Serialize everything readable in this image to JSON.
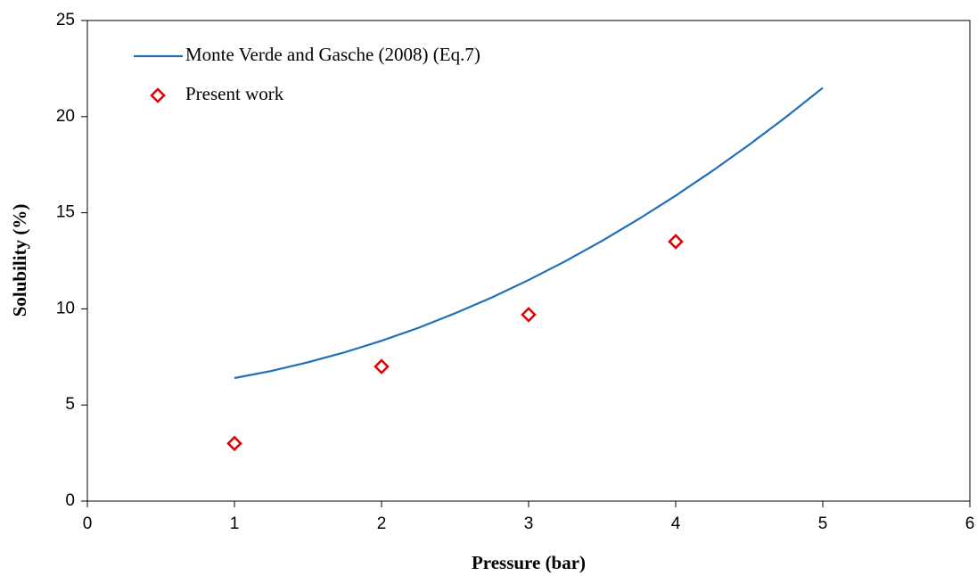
{
  "chart_data": {
    "type": "line",
    "x_label": "Pressure (bar)",
    "y_label": "Solubility (%)",
    "xlim": [
      0,
      6
    ],
    "xticks": [
      0,
      1,
      2,
      3,
      4,
      5,
      6
    ],
    "ylim": [
      0,
      25
    ],
    "yticks": [
      0,
      5,
      10,
      15,
      20,
      25
    ],
    "legend": "upper left",
    "series": [
      {
        "name": "Monte Verde and Gasche (2008) (Eq.7)",
        "type": "line",
        "color": "#1f6fb8",
        "x": [
          1,
          1.25,
          1.5,
          1.75,
          2,
          2.25,
          2.5,
          2.75,
          3,
          3.25,
          3.5,
          3.75,
          4,
          4.25,
          4.5,
          4.75,
          5
        ],
        "values": [
          6.4,
          6.77,
          7.22,
          7.74,
          8.34,
          9.01,
          9.77,
          10.59,
          11.5,
          12.48,
          13.54,
          14.68,
          15.89,
          17.18,
          18.54,
          19.98,
          21.5
        ]
      },
      {
        "name": "Present work",
        "type": "scatter",
        "color": "#e00000",
        "x": [
          1,
          2,
          3,
          4
        ],
        "values": [
          3.0,
          7.0,
          9.7,
          13.5
        ]
      }
    ]
  }
}
